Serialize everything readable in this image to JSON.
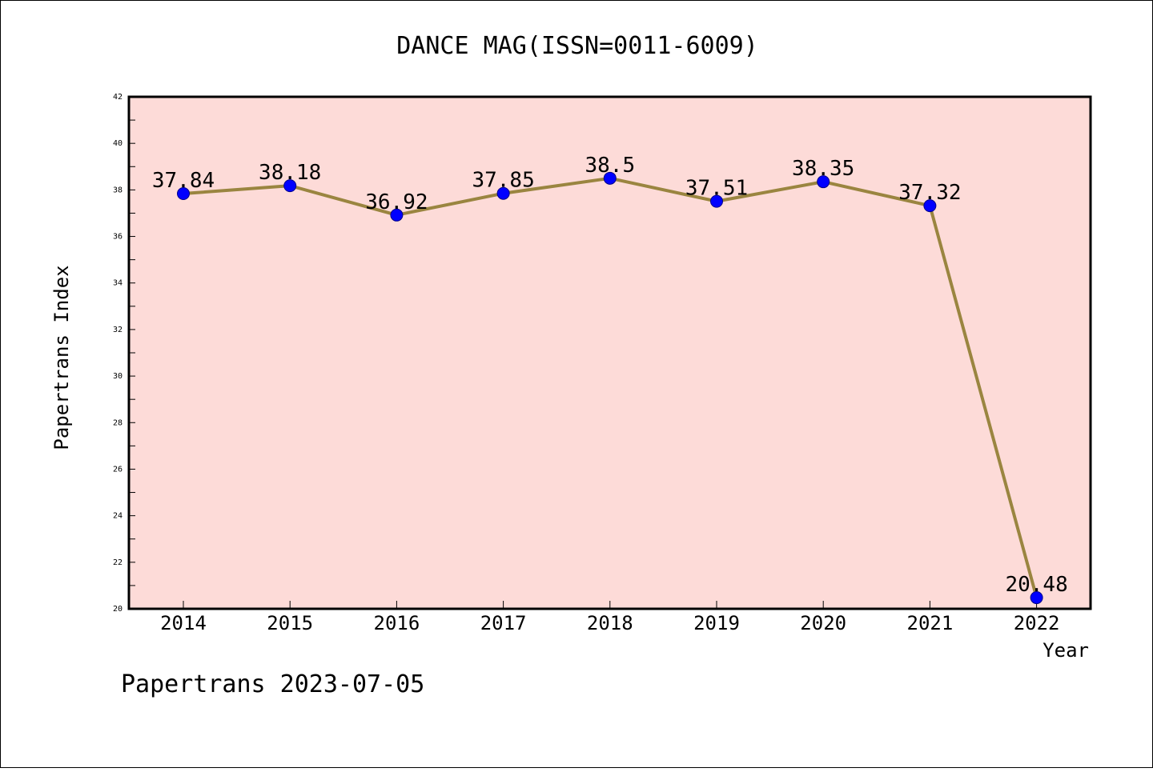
{
  "chart_data": {
    "type": "line",
    "title": "DANCE MAG(ISSN=0011-6009)",
    "xlabel": "Year",
    "ylabel": "Papertrans Index",
    "categories": [
      "2014",
      "2015",
      "2016",
      "2017",
      "2018",
      "2019",
      "2020",
      "2021",
      "2022"
    ],
    "values": [
      37.84,
      38.18,
      36.92,
      37.85,
      38.5,
      37.51,
      38.35,
      37.32,
      20.48
    ],
    "data_labels": [
      "37.84",
      "38.18",
      "36.92",
      "37.85",
      "38.5",
      "37.51",
      "38.35",
      "37.32",
      "20.48"
    ],
    "ylim": [
      20,
      42
    ],
    "yticks": [
      20,
      22,
      24,
      26,
      28,
      30,
      32,
      34,
      36,
      38,
      40,
      42
    ],
    "grid": false,
    "legend": "none",
    "colors": {
      "plot_background": "#fddbd8",
      "line": "#9a8540",
      "marker": "#0000ff",
      "axis": "#000000"
    }
  },
  "footer": "Papertrans 2023-07-05"
}
